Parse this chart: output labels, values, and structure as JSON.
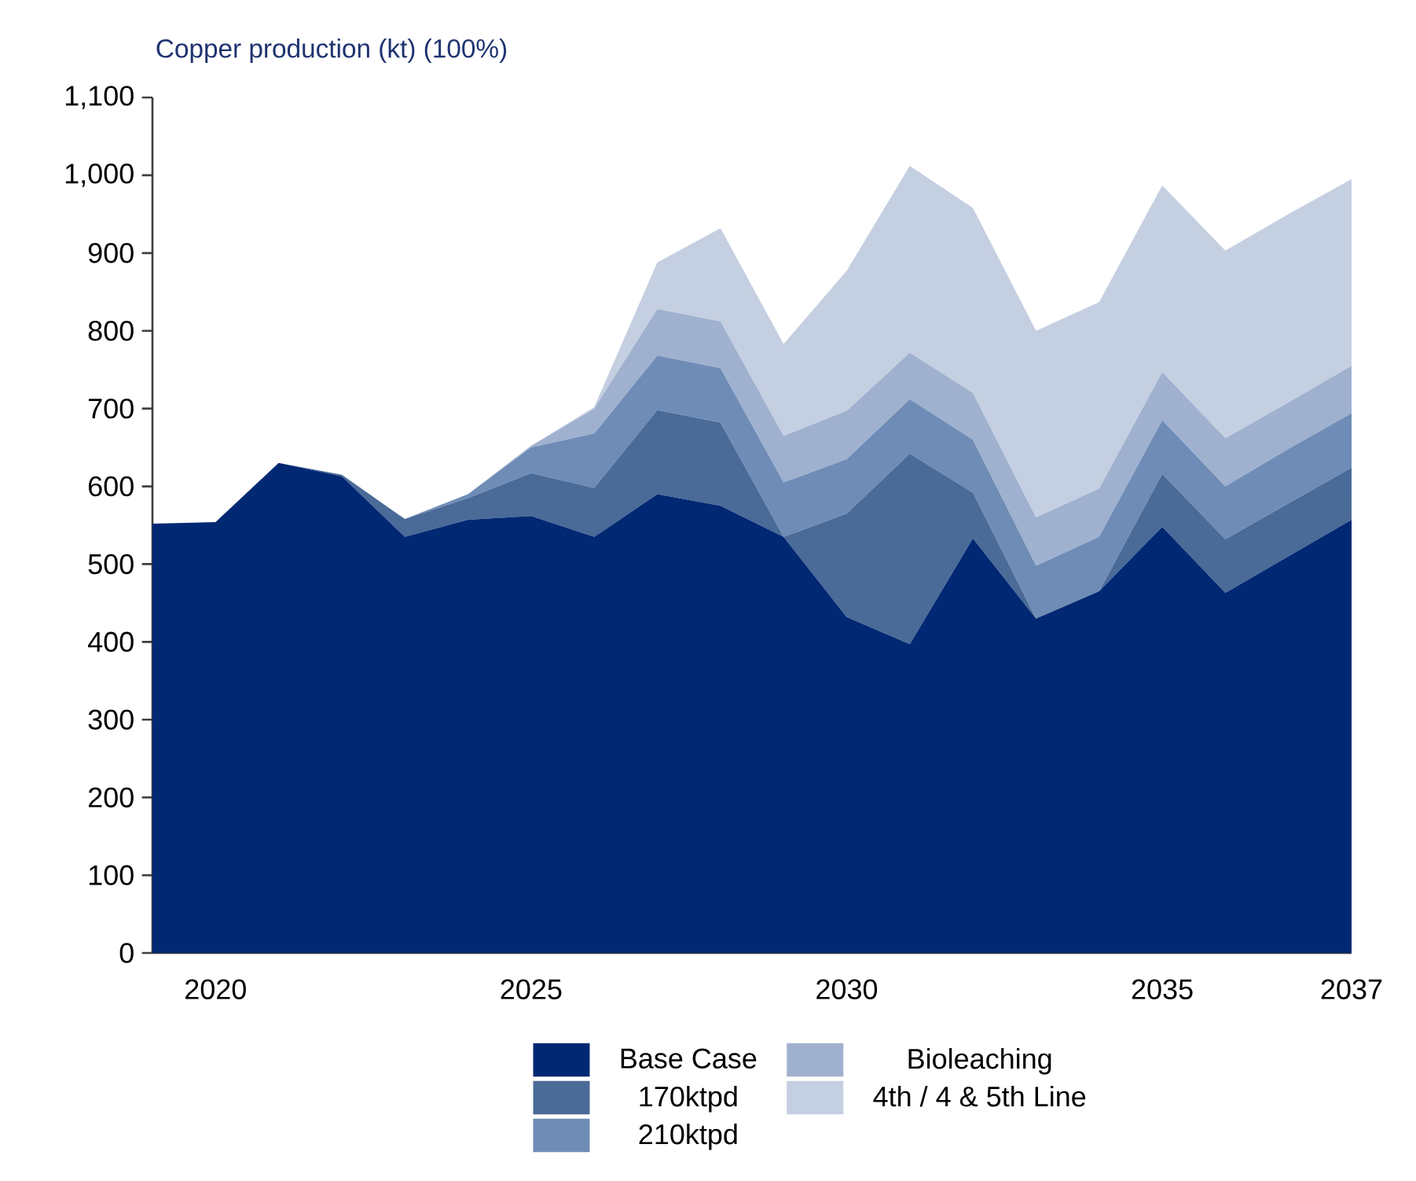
{
  "chart_data": {
    "type": "area",
    "stacked": true,
    "ylabel": "Copper production (kt) (100%)",
    "categories": [
      null,
      "2020",
      null,
      null,
      null,
      null,
      "2025",
      null,
      null,
      null,
      null,
      "2030",
      null,
      null,
      null,
      null,
      "2035",
      null,
      null,
      "2037"
    ],
    "ylim": [
      0,
      1100
    ],
    "yticks": [
      0,
      100,
      200,
      300,
      400,
      500,
      600,
      700,
      800,
      900,
      {
        "value": 1000,
        "label": "1,000"
      },
      {
        "value": 1100,
        "label": "1,100"
      }
    ],
    "legend": "bottom",
    "grid": false,
    "series": [
      {
        "name": "Base Case",
        "color": "#002873",
        "values": [
          552,
          554,
          630,
          613,
          535,
          557,
          562,
          535,
          590,
          575,
          535,
          432,
          397,
          533,
          430,
          465,
          548,
          463,
          510,
          557
        ]
      },
      {
        "name": "170ktpd",
        "color": "#4a6a98",
        "values": [
          0,
          0,
          0,
          2,
          23,
          28,
          55,
          63,
          108,
          107,
          0,
          133,
          245,
          59,
          0,
          0,
          68,
          69,
          68,
          67
        ]
      },
      {
        "name": "210ktpd",
        "color": "#6e8cb6",
        "values": [
          0,
          0,
          0,
          0,
          0,
          5,
          33,
          70,
          70,
          70,
          70,
          70,
          70,
          68,
          68,
          70,
          69,
          68,
          70,
          70
        ]
      },
      {
        "name": "Bioleaching",
        "color": "#9fb1cf",
        "values": [
          0,
          0,
          0,
          0,
          0,
          0,
          2,
          32,
          60,
          60,
          60,
          62,
          60,
          60,
          62,
          62,
          62,
          62,
          60,
          61
        ]
      },
      {
        "name": "4th / 4 & 5th Line",
        "color": "#c4cfe1",
        "values": [
          0,
          0,
          0,
          0,
          0,
          0,
          0,
          2,
          60,
          120,
          118,
          180,
          240,
          238,
          240,
          240,
          240,
          241,
          242,
          240
        ]
      }
    ]
  }
}
